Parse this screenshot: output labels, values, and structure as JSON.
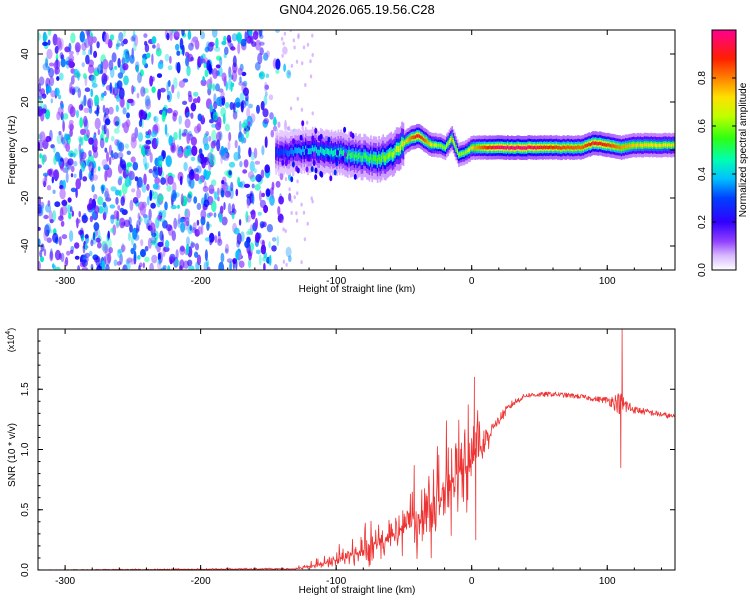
{
  "title": "GN04.2026.065.19.56.C28",
  "chart_data": [
    {
      "type": "heatmap",
      "xlabel": "Height of straight line (km)",
      "ylabel": "Frequency (Hz)",
      "xlim": [
        -320,
        150
      ],
      "ylim": [
        -50,
        50
      ],
      "xticks": [
        -300,
        -200,
        -100,
        0,
        100
      ],
      "yticks": [
        -40,
        -20,
        0,
        20,
        40
      ],
      "colorbar": {
        "label": "Normalized spectral amplitude",
        "range": [
          0,
          1
        ],
        "ticks": [
          "0.0",
          "0.2",
          "0.4",
          "0.6",
          "0.8"
        ],
        "colors": [
          "#ffffff",
          "#c080ff",
          "#6000ff",
          "#0000ff",
          "#00c0ff",
          "#00ffa0",
          "#40ff00",
          "#c0ff00",
          "#ffe000",
          "#ff8000",
          "#ff2000",
          "#ff0080"
        ]
      },
      "ridge": {
        "x": [
          -140,
          -120,
          -100,
          -90,
          -80,
          -70,
          -60,
          -50,
          -45,
          -40,
          -35,
          -30,
          -25,
          -20,
          -15,
          -10,
          -5,
          0,
          10,
          20,
          40,
          60,
          80,
          90,
          100,
          110,
          120,
          150
        ],
        "y": [
          -1,
          0,
          -1,
          -2,
          -3,
          -4,
          -2,
          3,
          5,
          6,
          4,
          2,
          2,
          1,
          5,
          -2,
          -1,
          1,
          1,
          1,
          1,
          1,
          1,
          3,
          2,
          1,
          2,
          2
        ],
        "peak_amplitude": [
          0.3,
          0.4,
          0.45,
          0.5,
          0.5,
          0.55,
          0.6,
          0.7,
          0.85,
          0.95,
          0.85,
          0.7,
          0.6,
          0.6,
          0.75,
          0.6,
          0.6,
          0.75,
          0.9,
          1.0,
          1.0,
          0.9,
          0.85,
          0.95,
          0.9,
          0.8,
          0.75,
          0.7
        ]
      },
      "noise_region": {
        "x": [
          -320,
          -140
        ],
        "amplitude": [
          0.1,
          0.45
        ]
      }
    },
    {
      "type": "line",
      "xlabel": "Height of straight line (km)",
      "ylabel": "SNR (10 * v/v)",
      "scale_label": "(x10",
      "scale_exponent": "4",
      "xlim": [
        -320,
        150
      ],
      "ylim": [
        0,
        2.0
      ],
      "xticks": [
        -300,
        -200,
        -100,
        0,
        100
      ],
      "yticks": [
        "0.0",
        "0.5",
        "1.0",
        "1.5"
      ],
      "color": "#ee3333",
      "envelope": {
        "x": [
          -320,
          -130,
          -110,
          -100,
          -80,
          -60,
          -40,
          -20,
          -10,
          0,
          10,
          20,
          30,
          40,
          60,
          80,
          90,
          100,
          110,
          120,
          150
        ],
        "y": [
          0.0,
          0.01,
          0.05,
          0.08,
          0.15,
          0.25,
          0.45,
          0.65,
          0.8,
          0.9,
          1.05,
          1.25,
          1.38,
          1.45,
          1.46,
          1.44,
          1.42,
          1.41,
          1.38,
          1.33,
          1.27
        ],
        "noise": [
          0.005,
          0.01,
          0.05,
          0.08,
          0.15,
          0.25,
          0.45,
          0.5,
          0.4,
          0.4,
          0.15,
          0.05,
          0.03,
          0.02,
          0.02,
          0.02,
          0.02,
          0.03,
          0.1,
          0.03,
          0.02
        ]
      },
      "spikes": [
        {
          "x": 2,
          "y": 1.6
        },
        {
          "x": 3,
          "y": 0.25
        },
        {
          "x": 111,
          "y": 2.0
        },
        {
          "x": 110,
          "y": 0.85
        }
      ]
    }
  ]
}
